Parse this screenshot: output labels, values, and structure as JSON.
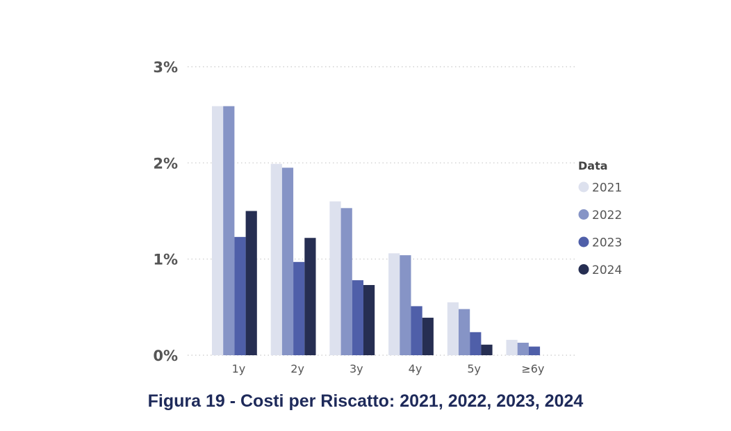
{
  "caption": "Figura 19 - Costi per Riscatto: 2021, 2022, 2023, 2024",
  "chart_data": {
    "type": "bar",
    "categories": [
      "1y",
      "2y",
      "3y",
      "4y",
      "5y",
      "≥6y"
    ],
    "series": [
      {
        "name": "2021",
        "color": "#dde1ee",
        "values": [
          2.59,
          1.99,
          1.6,
          1.06,
          0.55,
          0.16
        ]
      },
      {
        "name": "2022",
        "color": "#8694c6",
        "values": [
          2.59,
          1.95,
          1.53,
          1.04,
          0.48,
          0.13
        ]
      },
      {
        "name": "2023",
        "color": "#4f5fa9",
        "values": [
          1.23,
          0.97,
          0.78,
          0.51,
          0.24,
          0.09
        ]
      },
      {
        "name": "2024",
        "color": "#262e52",
        "values": [
          1.5,
          1.22,
          0.73,
          0.39,
          0.11,
          null
        ]
      }
    ],
    "y_ticks": [
      0,
      1,
      2,
      3
    ],
    "y_tick_labels": [
      "0%",
      "1%",
      "2%",
      "3%"
    ],
    "ylim": [
      0,
      3
    ],
    "grid": true,
    "legend": {
      "title": "Data",
      "placement": "right"
    },
    "title": "",
    "xlabel": "",
    "ylabel": ""
  }
}
